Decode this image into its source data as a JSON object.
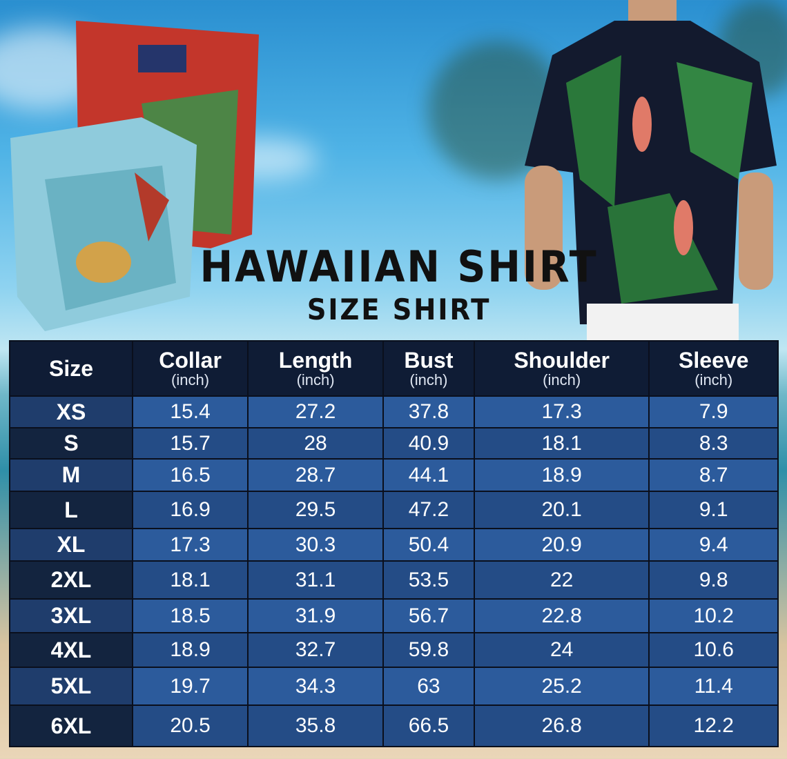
{
  "title": "HAWAIIAN SHIRT",
  "subtitle": "SIZE SHIRT",
  "table": {
    "columns": [
      {
        "label": "Size",
        "unit": ""
      },
      {
        "label": "Collar",
        "unit": "(inch)"
      },
      {
        "label": "Length",
        "unit": "(inch)"
      },
      {
        "label": "Bust",
        "unit": "(inch)"
      },
      {
        "label": "Shoulder",
        "unit": "(inch)"
      },
      {
        "label": "Sleeve",
        "unit": "(inch)"
      }
    ],
    "rows": [
      [
        "XS",
        "15.4",
        "27.2",
        "37.8",
        "17.3",
        "7.9"
      ],
      [
        "S",
        "15.7",
        "28",
        "40.9",
        "18.1",
        "8.3"
      ],
      [
        "M",
        "16.5",
        "28.7",
        "44.1",
        "18.9",
        "8.7"
      ],
      [
        "L",
        "16.9",
        "29.5",
        "47.2",
        "20.1",
        "9.1"
      ],
      [
        "XL",
        "17.3",
        "30.3",
        "50.4",
        "20.9",
        "9.4"
      ],
      [
        "2XL",
        "18.1",
        "31.1",
        "53.5",
        "22",
        "9.8"
      ],
      [
        "3XL",
        "18.5",
        "31.9",
        "56.7",
        "22.8",
        "10.2"
      ],
      [
        "4XL",
        "18.9",
        "32.7",
        "59.8",
        "24",
        "10.6"
      ],
      [
        "5XL",
        "19.7",
        "34.3",
        "63",
        "25.2",
        "11.4"
      ],
      [
        "6XL",
        "20.5",
        "35.8",
        "66.5",
        "26.8",
        "12.2"
      ]
    ]
  },
  "colors": {
    "header": "#0f1c35",
    "row_light": "#2c5b9c",
    "row_dark": "#244c86",
    "title": "#111111"
  }
}
